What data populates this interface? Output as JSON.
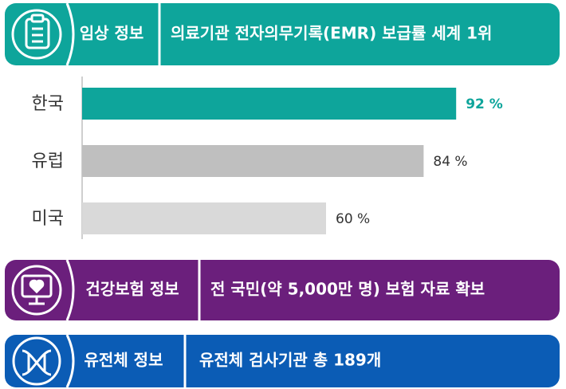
{
  "chart_data": {
    "type": "bar",
    "orientation": "horizontal",
    "categories": [
      "한국",
      "유럽",
      "미국"
    ],
    "values": [
      92,
      84,
      60
    ],
    "value_labels": [
      "92 %",
      "84 %",
      "60 %"
    ],
    "colors": [
      "#0ea59b",
      "#bfbfbf",
      "#d9d9d9"
    ],
    "xlim": [
      0,
      100
    ]
  },
  "banners": [
    {
      "label": "임상 정보",
      "text": "의료기관 전자의무기록(EMR) 보급률 세계 1위",
      "color": "#0ea59b"
    },
    {
      "label": "건강보험 정보",
      "text": "전 국민(약 5,000만 명) 보험 자료 확보",
      "color": "#6b1f7c"
    },
    {
      "label": "유전체 정보",
      "text": "유전체 검사기관 총 189개",
      "color": "#0b5cb5"
    }
  ]
}
